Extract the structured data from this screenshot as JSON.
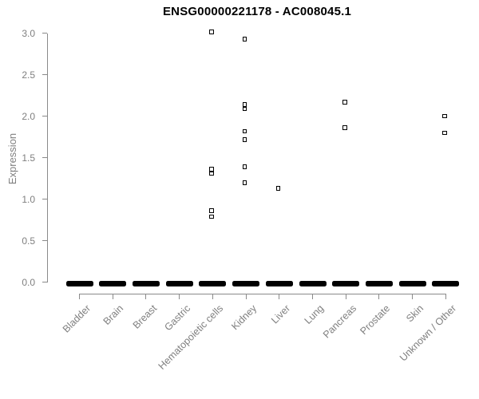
{
  "page": {
    "background": "#ffffff"
  },
  "chart_data": {
    "type": "scatter",
    "variant": "strip-chart",
    "title": "ENSG00000221178 - AC008045.1",
    "xlabel": "",
    "ylabel": "Expression",
    "ylim": [
      0.0,
      3.0
    ],
    "yticks": [
      0.0,
      0.5,
      1.0,
      1.5,
      2.0,
      2.5,
      3.0
    ],
    "grid": false,
    "legend": false,
    "marker": "small-open-black-square",
    "categories": [
      "Bladder",
      "Brain",
      "Breast",
      "Gastric",
      "Hematopoietic cells",
      "Kidney",
      "Liver",
      "Lung",
      "Pancreas",
      "Prostate",
      "Skin",
      "Unknown / Other"
    ],
    "series": [
      {
        "category": "Bladder",
        "values": [],
        "zero_cluster": true
      },
      {
        "category": "Brain",
        "values": [],
        "zero_cluster": true
      },
      {
        "category": "Breast",
        "values": [],
        "zero_cluster": true
      },
      {
        "category": "Gastric",
        "values": [],
        "zero_cluster": true
      },
      {
        "category": "Hematopoietic cells",
        "values": [
          3.02,
          1.36,
          1.31,
          0.86,
          0.79
        ],
        "zero_cluster": true
      },
      {
        "category": "Kidney",
        "values": [
          2.93,
          2.14,
          2.09,
          1.82,
          1.72,
          1.39,
          1.2
        ],
        "zero_cluster": true
      },
      {
        "category": "Liver",
        "values": [
          1.13
        ],
        "zero_cluster": true
      },
      {
        "category": "Lung",
        "values": [],
        "zero_cluster": true
      },
      {
        "category": "Pancreas",
        "values": [
          2.17,
          1.86
        ],
        "zero_cluster": true
      },
      {
        "category": "Prostate",
        "values": [],
        "zero_cluster": true
      },
      {
        "category": "Skin",
        "values": [],
        "zero_cluster": true
      },
      {
        "category": "Unknown / Other",
        "values": [
          2.0,
          1.8
        ],
        "zero_cluster": true
      }
    ],
    "note": "Every category shows a dense horizontal cluster of overlapping square points at expression 0 (rendered as a thick black dash); non-zero points are listed in series.values.",
    "colors": {
      "points": "#000000",
      "title": "#000000",
      "axis_text": "#7f7f7f",
      "axis_line": "#8a8a8a",
      "background": "#ffffff"
    }
  }
}
